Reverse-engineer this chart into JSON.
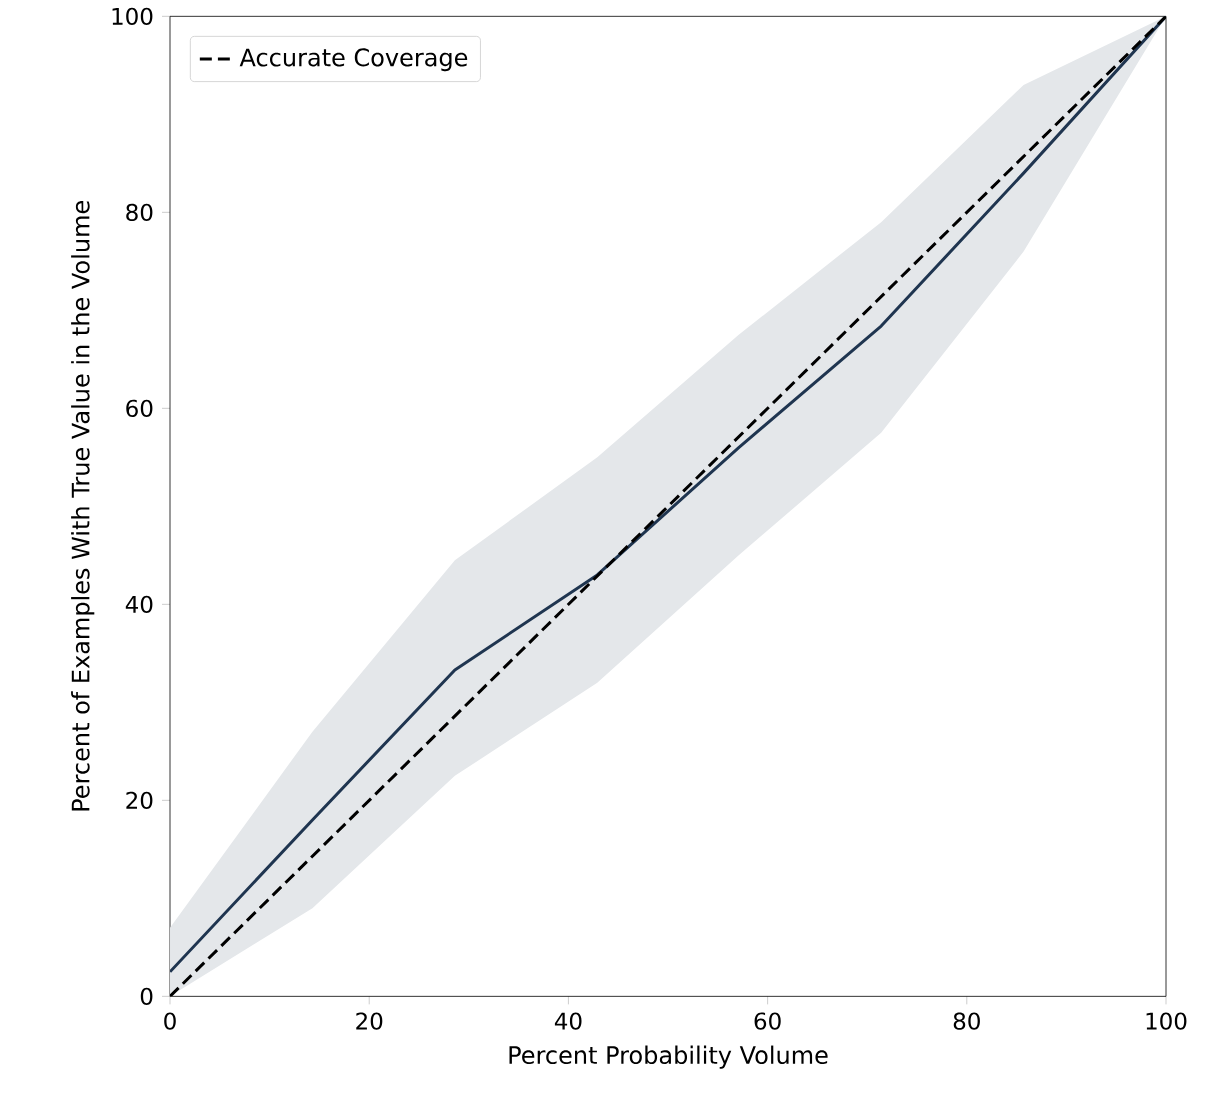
{
  "chart_data": {
    "type": "line",
    "xlabel": "Percent Probability Volume",
    "ylabel": "Percent of Examples With True Value in the Volume",
    "xlim": [
      0,
      100
    ],
    "ylim": [
      0,
      100
    ],
    "xticks": [
      0,
      20,
      40,
      60,
      80,
      100
    ],
    "yticks": [
      0,
      20,
      40,
      60,
      80,
      100
    ],
    "grid": false,
    "legend": "top left",
    "marker": "none",
    "series": [
      {
        "color": "#1f3550",
        "line_style": "solid",
        "x": [
          0,
          14.3,
          28.6,
          42.9,
          57.1,
          71.4,
          85.7,
          100
        ],
        "values": [
          2.5,
          18,
          33.3,
          43,
          56,
          68.4,
          84,
          100
        ],
        "lower": [
          0,
          9,
          22.5,
          32,
          45,
          57.5,
          76,
          100
        ],
        "upper": [
          7,
          27,
          44.5,
          55,
          67.5,
          79,
          93,
          100
        ]
      },
      {
        "name": "Accurate Coverage",
        "color": "#000000",
        "line_style": "dashed",
        "x": [
          0,
          100
        ],
        "values": [
          0,
          100
        ]
      }
    ]
  }
}
